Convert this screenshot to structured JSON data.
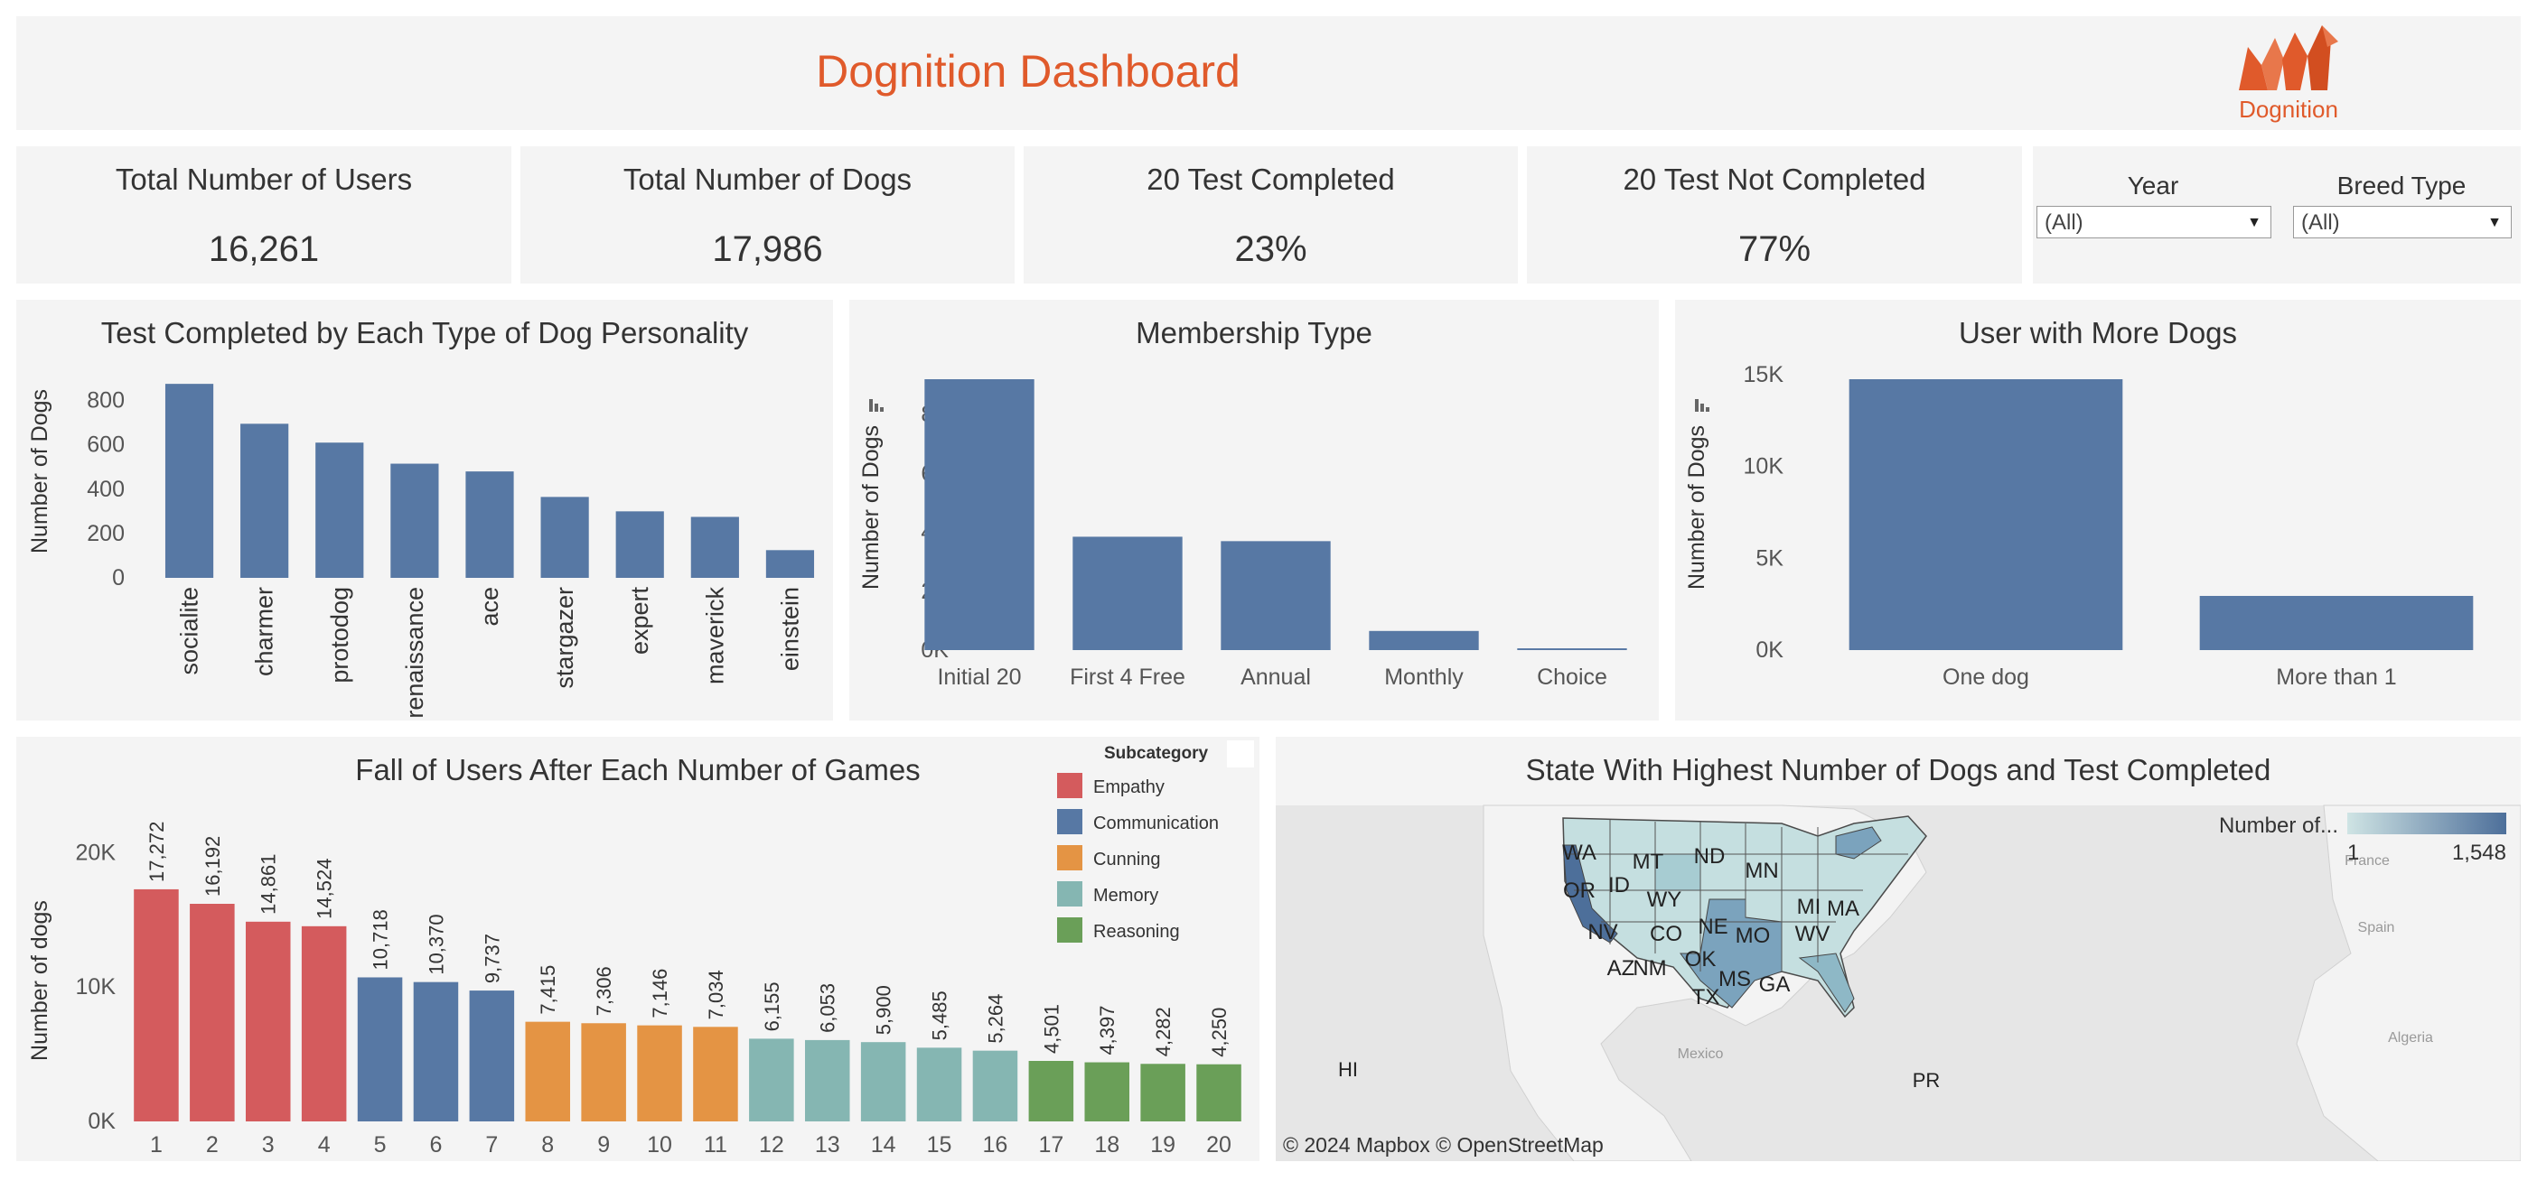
{
  "header": {
    "title": "Dognition Dashboard",
    "logo_text": "Dognition",
    "title_color": "#e05a2b",
    "logo_color": "#e05a2b"
  },
  "kpis": [
    {
      "label": "Total Number of Users",
      "value": "16,261"
    },
    {
      "label": "Total Number of Dogs",
      "value": "17,986"
    },
    {
      "label": "20 Test Completed",
      "value": "23%"
    },
    {
      "label": "20 Test Not Completed",
      "value": "77%"
    }
  ],
  "filters": {
    "year": {
      "label": "Year",
      "value": "(All)"
    },
    "breed": {
      "label": "Breed Type",
      "value": "(All)"
    }
  },
  "chart_data": [
    {
      "type": "bar",
      "title": "Test Completed by Each Type of Dog Personality",
      "ylabel": "Number of Dogs",
      "xlabel": "",
      "categories": [
        "socialite",
        "charmer",
        "protodog",
        "renaissance",
        "ace",
        "stargazer",
        "expert",
        "maverick",
        "einstein"
      ],
      "values": [
        875,
        695,
        610,
        515,
        480,
        365,
        300,
        275,
        125
      ],
      "yticks": [
        0,
        200,
        400,
        600,
        800
      ],
      "ytick_labels": [
        "0",
        "200",
        "400",
        "600",
        "800"
      ],
      "ylim": [
        0,
        900
      ],
      "color": "#5778a4"
    },
    {
      "type": "bar",
      "title": "Membership Type",
      "ylabel": "Number of Dogs",
      "xlabel": "",
      "categories": [
        "Initial 20",
        "First 4 Free",
        "Annual",
        "Monthly",
        "Choice"
      ],
      "values": [
        9200,
        3850,
        3700,
        650,
        60
      ],
      "yticks": [
        0,
        2000,
        4000,
        6000,
        8000
      ],
      "ytick_labels": [
        "0K",
        "2K",
        "4K",
        "6K",
        "8K"
      ],
      "ylim": [
        0,
        9200
      ],
      "color": "#5778a4"
    },
    {
      "type": "bar",
      "title": "User with More Dogs",
      "ylabel": "Number of Dogs",
      "xlabel": "",
      "categories": [
        "One dog",
        "More than 1"
      ],
      "values": [
        14750,
        2950
      ],
      "yticks": [
        0,
        5000,
        10000,
        15000
      ],
      "ytick_labels": [
        "0K",
        "5K",
        "10K",
        "15K"
      ],
      "ylim": [
        0,
        14750
      ],
      "color": "#5778a4"
    },
    {
      "type": "bar",
      "title": "Fall of Users After Each Number of Games",
      "ylabel": "Number of dogs",
      "xlabel": "",
      "categories": [
        "1",
        "2",
        "3",
        "4",
        "5",
        "6",
        "7",
        "8",
        "9",
        "10",
        "11",
        "12",
        "13",
        "14",
        "15",
        "16",
        "17",
        "18",
        "19",
        "20"
      ],
      "values": [
        17272,
        16192,
        14861,
        14524,
        10718,
        10370,
        9737,
        7415,
        7306,
        7146,
        7034,
        6155,
        6053,
        5900,
        5485,
        5264,
        4501,
        4397,
        4282,
        4250
      ],
      "value_labels": [
        "17,272",
        "16,192",
        "14,861",
        "14,524",
        "10,718",
        "10,370",
        "9,737",
        "7,415",
        "7,306",
        "7,146",
        "7,034",
        "6,155",
        "6,053",
        "5,900",
        "5,485",
        "5,264",
        "4,501",
        "4,397",
        "4,282",
        "4,250"
      ],
      "groups": [
        "Empathy",
        "Empathy",
        "Empathy",
        "Empathy",
        "Communication",
        "Communication",
        "Communication",
        "Cunning",
        "Cunning",
        "Cunning",
        "Cunning",
        "Memory",
        "Memory",
        "Memory",
        "Memory",
        "Memory",
        "Reasoning",
        "Reasoning",
        "Reasoning",
        "Reasoning"
      ],
      "yticks": [
        0,
        10000,
        20000
      ],
      "ytick_labels": [
        "0K",
        "10K",
        "20K"
      ],
      "ylim": [
        0,
        20000
      ],
      "legend": {
        "title": "Subcategory",
        "position": "top-right",
        "items": [
          {
            "name": "Empathy",
            "color": "#d45b5d"
          },
          {
            "name": "Communication",
            "color": "#5778a4"
          },
          {
            "name": "Cunning",
            "color": "#e49444"
          },
          {
            "name": "Memory",
            "color": "#85b6b2"
          },
          {
            "name": "Reasoning",
            "color": "#6a9f58"
          }
        ]
      }
    }
  ],
  "map": {
    "title": "State With Highest Number of Dogs and Test Completed",
    "legend_title": "Number of...",
    "legend_min": "1",
    "legend_max": "1,548",
    "attribution": "© 2024 Mapbox  © OpenStreetMap",
    "state_labels": [
      "WA",
      "MT",
      "ND",
      "MN",
      "OR",
      "ID",
      "WY",
      "MI",
      "NE",
      "MA",
      "NV",
      "CO",
      "MO",
      "WV",
      "AZ",
      "NM",
      "OK",
      "MS",
      "GA",
      "TX"
    ],
    "territory_labels": [
      "HI",
      "PR"
    ],
    "place_labels": [
      "Mexico",
      "Spain",
      "Algeria",
      "France"
    ],
    "colors": {
      "low": "#cfe4e4",
      "high": "#4d6f9a"
    }
  }
}
